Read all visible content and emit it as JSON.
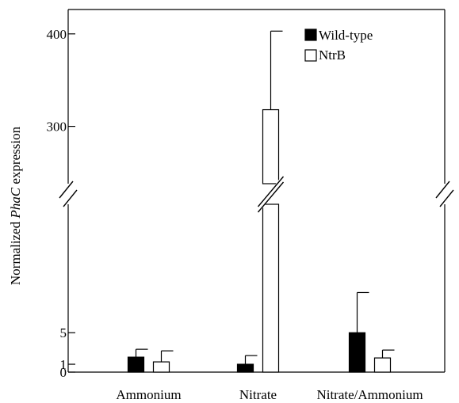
{
  "chart_data": {
    "type": "bar",
    "ylabel_parts": {
      "prefix": "Normalized ",
      "italic": "PhaC",
      "suffix": " expression"
    },
    "categories": [
      "Ammonium",
      "Nitrate",
      "Nitrate/Ammonium"
    ],
    "series": [
      {
        "name": "Wild-type",
        "color": "#000000",
        "values": [
          1.9,
          1.0,
          5.0
        ],
        "errors": [
          1.0,
          1.1,
          5.1
        ]
      },
      {
        "name": "NtrB",
        "color": "#ffffff",
        "values": [
          1.3,
          318,
          1.8
        ],
        "errors": [
          1.4,
          85,
          1.0
        ]
      }
    ],
    "y_axis": {
      "broken": true,
      "lower_ylim": [
        0,
        11
      ],
      "upper_ylim": [
        238,
        500
      ],
      "lower_ticks": [
        {
          "value": 0,
          "label": "0"
        },
        {
          "value": 1,
          "label": "1"
        },
        {
          "value": 5,
          "label": "5"
        }
      ],
      "upper_ticks": [
        {
          "value": 300,
          "label": "300"
        },
        {
          "value": 400,
          "label": "400"
        }
      ]
    },
    "legend": {
      "position": "top-right"
    },
    "grid": false
  }
}
